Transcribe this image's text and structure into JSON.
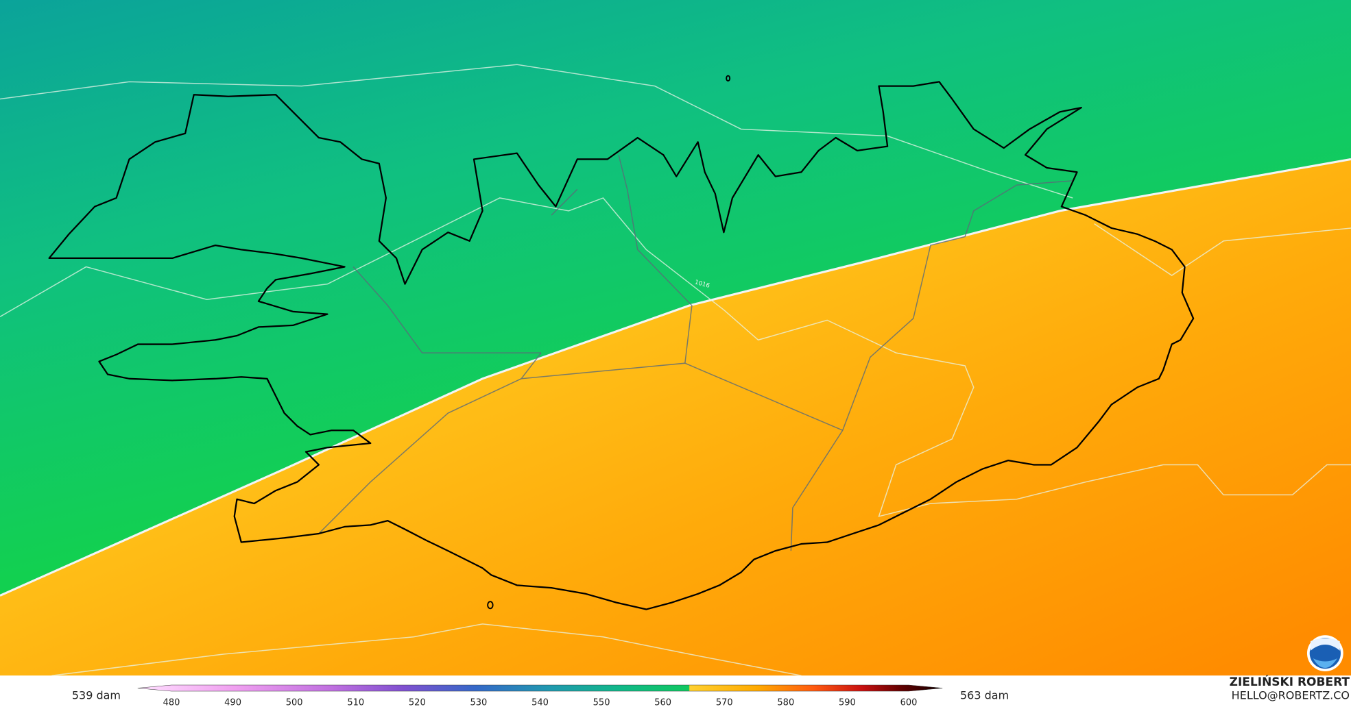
{
  "map": {
    "contour_label": "1016",
    "legend": {
      "min_label": "539 dam",
      "max_label": "563 dam",
      "ticks": [
        480,
        490,
        500,
        510,
        520,
        530,
        540,
        550,
        560,
        570,
        580,
        590,
        600
      ]
    },
    "credit": {
      "name": "ZIELIŃSKI ROBERT",
      "email": "HELLO@ROBERTZ.CO"
    }
  }
}
